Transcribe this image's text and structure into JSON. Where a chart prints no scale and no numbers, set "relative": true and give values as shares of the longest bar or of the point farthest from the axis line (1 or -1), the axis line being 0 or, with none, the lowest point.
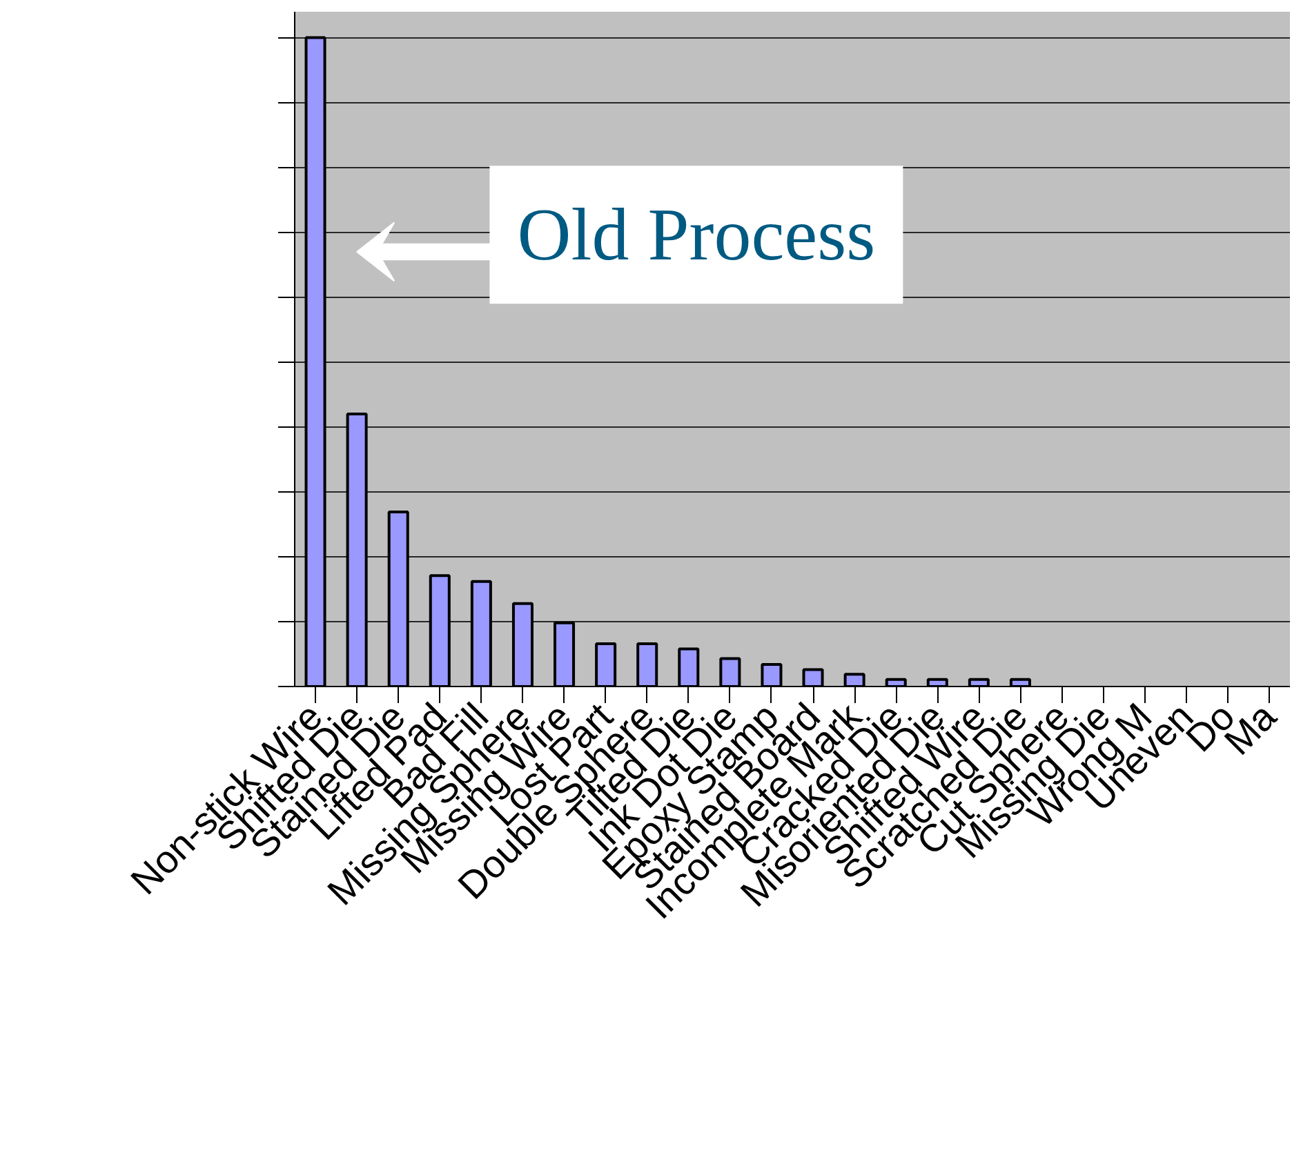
{
  "chart_data": {
    "type": "bar",
    "relative": true,
    "categories": [
      "Non-stick Wire",
      "Shifted Die",
      "Stained Die",
      "Lifted Pad",
      "Bad Fill",
      "Missing Sphere",
      "Missing Wire",
      "Lost Part",
      "Double Sphere",
      "Tilted Die",
      "Ink Dot Die",
      "Epoxy Stamp",
      "Stained Board",
      "Incomplete Mark",
      "Cracked Die",
      "Misoriented Die",
      "Shifted Wire",
      "Scratched Die",
      "Cut Sphere",
      "Missing Die",
      "Wrong M",
      "Uneven",
      "Do",
      "Ma"
    ],
    "values": [
      1,
      0.42,
      0.269,
      0.171,
      0.162,
      0.128,
      0.098,
      0.066,
      0.066,
      0.058,
      0.043,
      0.034,
      0.026,
      0.019,
      0.011,
      0.011,
      0.011,
      0.011,
      null,
      null,
      null,
      null,
      null,
      null
    ],
    "color": "#9999ff",
    "annotations": [
      "Old Process"
    ],
    "grid": "y",
    "tick_labels": "x"
  }
}
